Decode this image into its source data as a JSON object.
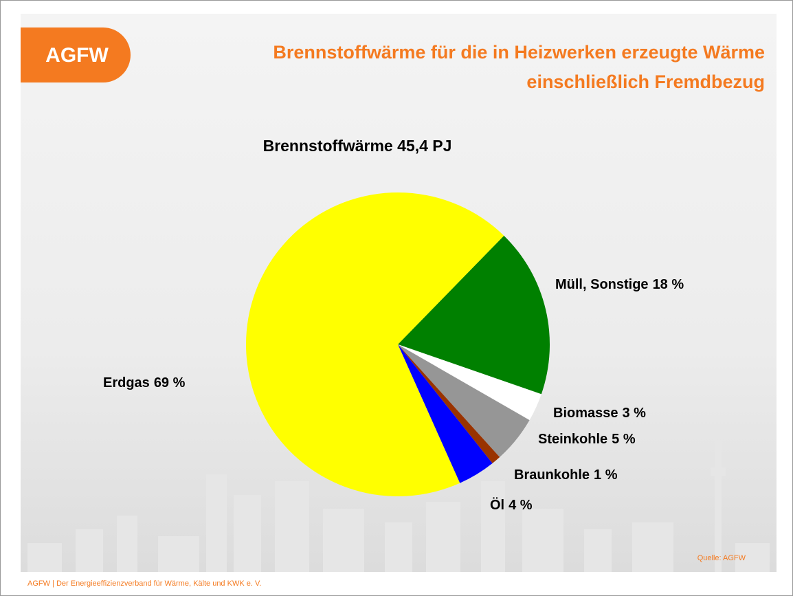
{
  "logo": "AGFW",
  "footer": "AGFW | Der Energieeffizienzverband für Wärme, Kälte und KWK e. V.",
  "source": "Quelle: AGFW",
  "chart_data": {
    "type": "pie",
    "title": [
      "Brennstoffwärme für die in Heizwerken erzeugte Wärme",
      "einschließlich Fremdbezug"
    ],
    "subtitle": "Brennstoffwärme 45,4 PJ",
    "categories": [
      "Müll, Sonstige",
      "Biomasse",
      "Steinkohle",
      "Braunkohle",
      "Öl",
      "Erdgas"
    ],
    "values": [
      18,
      3,
      5,
      1,
      4,
      69
    ],
    "value_labels": [
      "18 %",
      "3 %",
      "5 %",
      "1 %",
      "4 %",
      "69 %"
    ],
    "colors": [
      "#008000",
      "#ffffff",
      "#969696",
      "#993300",
      "#0000ff",
      "#ffff00"
    ]
  }
}
